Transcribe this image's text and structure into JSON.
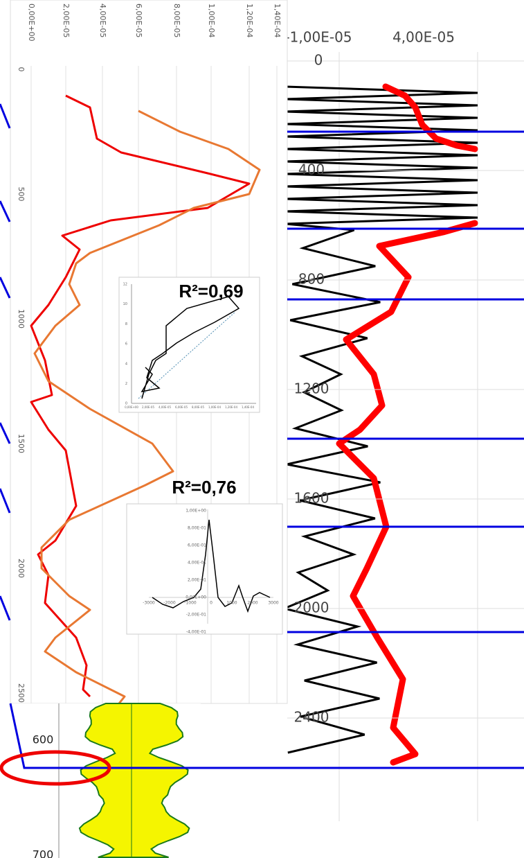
{
  "right_chart": {
    "x_labels": [
      "-1,00E-05",
      "4,00E-05"
    ],
    "depth_labels": [
      "0",
      "400",
      "800",
      "1200",
      "1600",
      "2000",
      "2400"
    ]
  },
  "left_chart": {
    "value_labels": [
      "0,00E+00",
      "2,00E-05",
      "4,00E-05",
      "6,00E-05",
      "8,00E-05",
      "1,00E-04",
      "1,20E-04",
      "1,40E-04"
    ],
    "depth_labels": [
      "0",
      "500",
      "1000",
      "1500",
      "2000",
      "2500"
    ]
  },
  "inset_1": {
    "label": "R²=0,69",
    "y_labels": [
      "12",
      "10",
      "8",
      "6",
      "4",
      "2",
      "0"
    ],
    "x_labels": [
      "0,00E+00",
      "2,00E-05",
      "4,00E-05",
      "6,00E-05",
      "8,00E-05",
      "1,00E-04",
      "1,20E-04",
      "1,40E-04"
    ]
  },
  "inset_2": {
    "label": "R²=0,76",
    "y_labels": [
      "1,00E+00",
      "8,00E-01",
      "6,00E-01",
      "4,00E-01",
      "2,00E-01",
      "0,00E+00",
      "-2,00E-01",
      "-4,00E-01"
    ],
    "x_labels": [
      "-3000",
      "-2000",
      "-1000",
      "0",
      "1000",
      "2000",
      "3000"
    ]
  },
  "log": {
    "depth_labels": [
      "600",
      "700"
    ]
  }
}
